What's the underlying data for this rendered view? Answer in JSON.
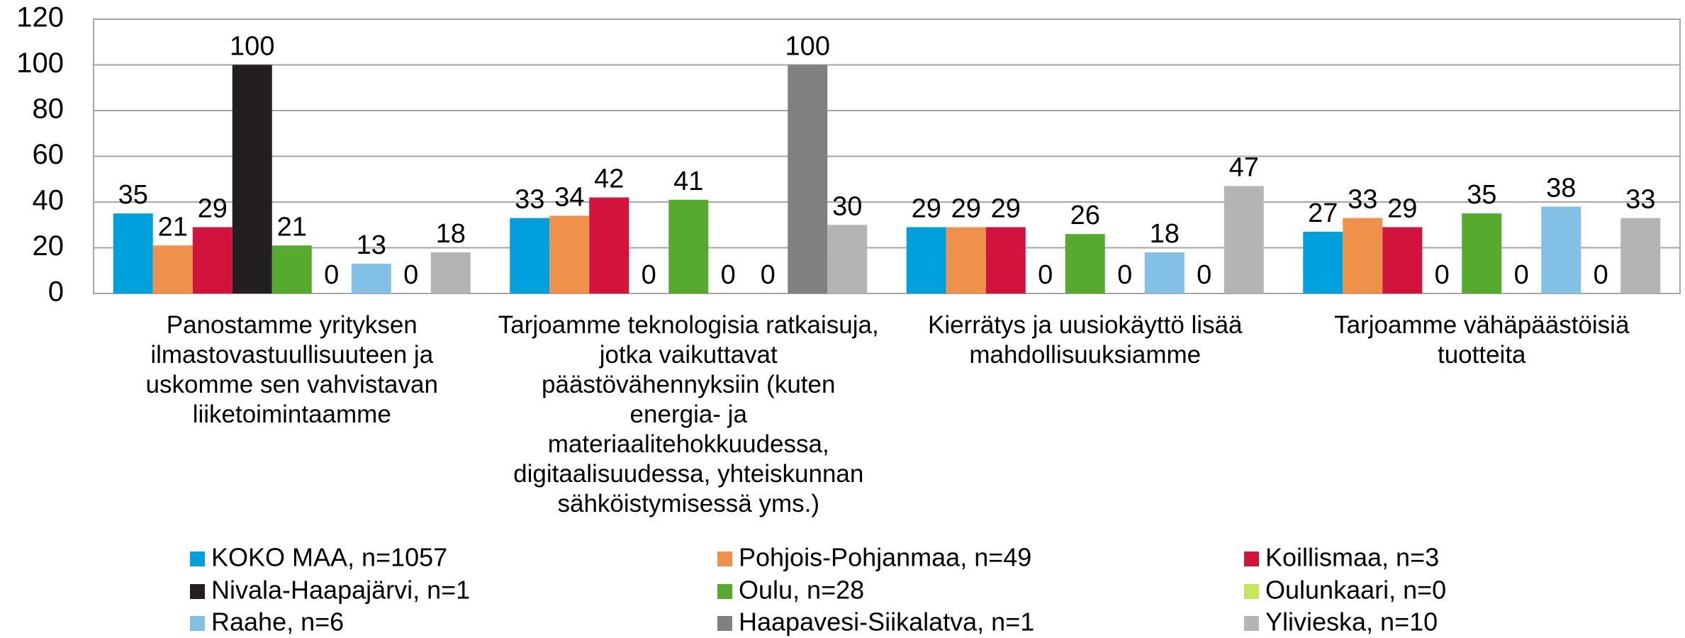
{
  "chart_data": {
    "type": "bar",
    "categories": [
      "Panostamme yrityksen ilmastovastuullisuuteen ja uskomme sen vahvistavan liiketoimintaamme",
      "Tarjoamme teknologisia ratkaisuja, jotka vaikuttavat päästövähennyksiin (kuten energia- ja materiaalitehokkuudessa, digitaalisuudessa, yhteiskunnan sähköistymisessä yms.)",
      "Kierrätys ja uusiokäyttö lisää mahdollisuuksiamme",
      "Tarjoamme vähäpäästöisiä tuotteita"
    ],
    "series": [
      {
        "name": "KOKO MAA, n=1057",
        "color": "#00a0dc",
        "values": [
          35,
          33,
          29,
          27
        ]
      },
      {
        "name": "Pohjois-Pohjanmaa, n=49",
        "color": "#f0914b",
        "values": [
          21,
          34,
          29,
          33
        ]
      },
      {
        "name": "Koillismaa, n=3",
        "color": "#d2143c",
        "values": [
          29,
          42,
          29,
          29
        ]
      },
      {
        "name": "Nivala-Haapajärvi, n=1",
        "color": "#231f20",
        "values": [
          100,
          0,
          0,
          0
        ]
      },
      {
        "name": "Oulu, n=28",
        "color": "#56ab2f",
        "values": [
          21,
          41,
          26,
          35
        ]
      },
      {
        "name": "Oulunkaari, n=0",
        "color": "#c8e65a",
        "values": [
          0,
          0,
          0,
          0
        ]
      },
      {
        "name": "Raahe, n=6",
        "color": "#82c0e6",
        "values": [
          13,
          0,
          18,
          38
        ]
      },
      {
        "name": "Haapavesi-Siikalatva, n=1",
        "color": "#808080",
        "values": [
          0,
          100,
          0,
          0
        ]
      },
      {
        "name": "Ylivieska, n=10",
        "color": "#b4b4b4",
        "values": [
          18,
          30,
          47,
          33
        ]
      }
    ],
    "ylim": [
      0,
      120
    ],
    "yticks": [
      0,
      20,
      40,
      60,
      80,
      100,
      120
    ],
    "grid": true,
    "legend": "bottom"
  }
}
